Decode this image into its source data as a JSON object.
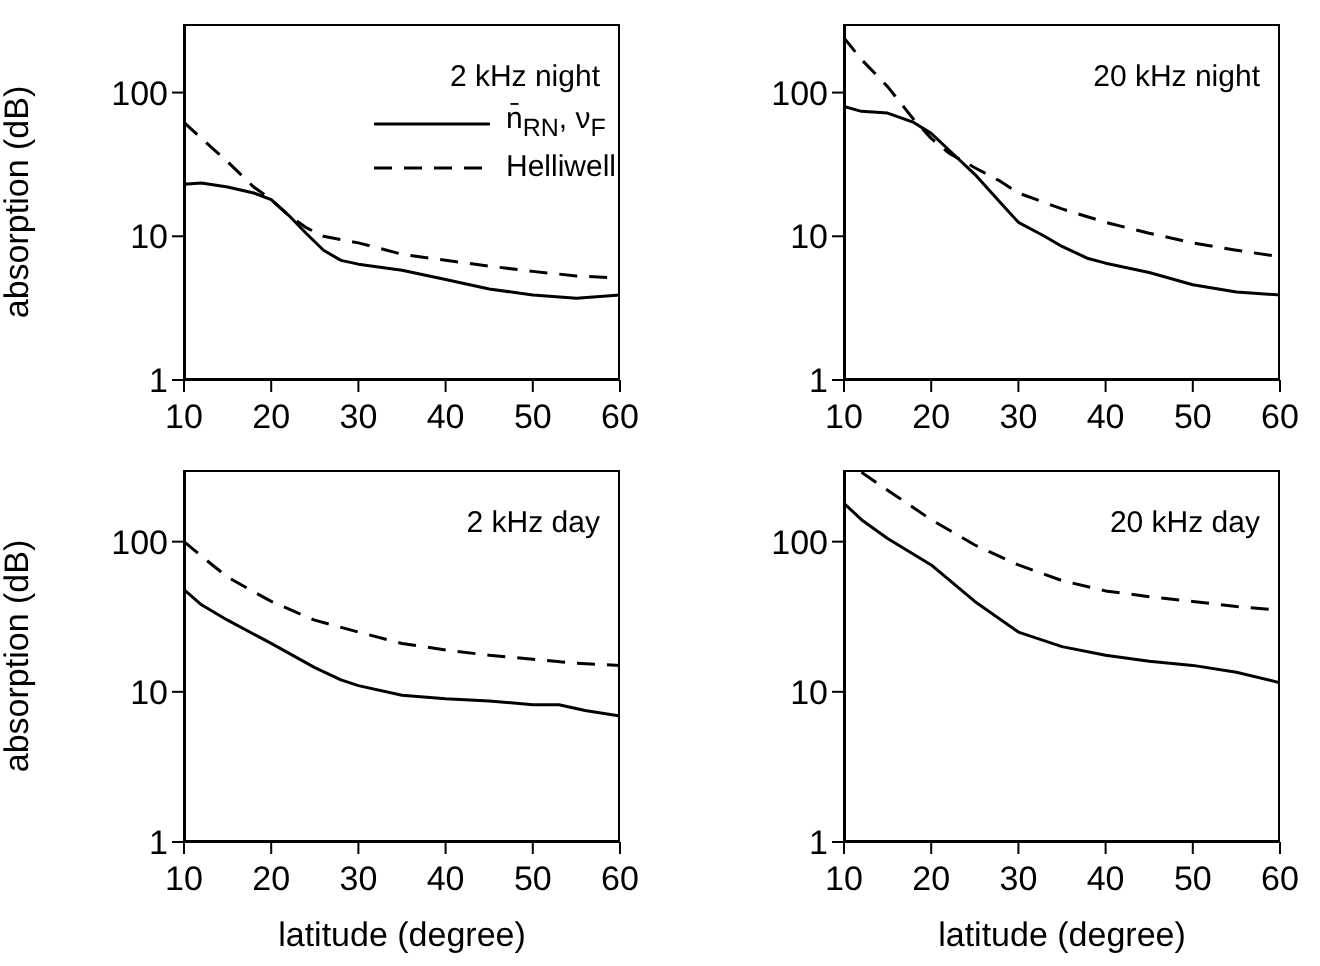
{
  "chart_data": [
    {
      "type": "line",
      "annotations": [
        "2 kHz night"
      ],
      "ylabel": "absorption (dB)",
      "log": true,
      "xlim": [
        10,
        60
      ],
      "xticks": [
        10,
        20,
        30,
        40,
        50,
        60
      ],
      "ylim": [
        1,
        300
      ],
      "yticks": [
        1,
        10,
        100
      ],
      "legend": "top right",
      "series": [
        {
          "name": "n̄$_{RN}$, ν$_{F}$",
          "color": "#000000",
          "line_style": "solid",
          "x": [
            10,
            12,
            15,
            18,
            20,
            22,
            24,
            26,
            28,
            30,
            35,
            40,
            45,
            50,
            55,
            60
          ],
          "values": [
            23,
            23.5,
            22,
            20,
            18,
            14,
            10.5,
            8,
            6.8,
            6.4,
            5.8,
            5,
            4.3,
            3.9,
            3.7,
            3.9
          ]
        },
        {
          "name": "Helliwell",
          "color": "#000000",
          "line_style": "dashed",
          "x": [
            10,
            12,
            15,
            18,
            20,
            22,
            24,
            26,
            30,
            35,
            40,
            45,
            50,
            55,
            60
          ],
          "values": [
            62,
            48,
            33,
            22,
            18,
            14,
            11.5,
            10,
            9,
            7.5,
            6.8,
            6.2,
            5.7,
            5.3,
            5.1
          ]
        }
      ]
    },
    {
      "type": "line",
      "annotations": [
        "20 kHz night"
      ],
      "log": true,
      "xlim": [
        10,
        60
      ],
      "xticks": [
        10,
        20,
        30,
        40,
        50,
        60
      ],
      "ylim": [
        1,
        300
      ],
      "yticks": [
        1,
        10,
        100
      ],
      "series": [
        {
          "color": "#000000",
          "line_style": "solid",
          "x": [
            10,
            12,
            15,
            18,
            20,
            22,
            25,
            28,
            30,
            33,
            35,
            38,
            40,
            45,
            50,
            55,
            60
          ],
          "values": [
            80,
            74,
            72,
            62,
            52,
            40,
            27,
            17,
            12.5,
            10,
            8.5,
            7,
            6.5,
            5.6,
            4.6,
            4.1,
            3.9
          ]
        },
        {
          "color": "#000000",
          "line_style": "dashed",
          "x": [
            10,
            12,
            15,
            18,
            20,
            22,
            25,
            28,
            30,
            35,
            40,
            45,
            50,
            55,
            60
          ],
          "values": [
            240,
            170,
            110,
            65,
            48,
            38,
            30,
            24,
            20,
            15.5,
            12.5,
            10.5,
            9,
            8,
            7.2
          ]
        }
      ]
    },
    {
      "type": "line",
      "annotations": [
        "2 kHz day"
      ],
      "ylabel": "absorption (dB)",
      "xlabel": "latitude (degree)",
      "log": true,
      "xlim": [
        10,
        60
      ],
      "xticks": [
        10,
        20,
        30,
        40,
        50,
        60
      ],
      "ylim": [
        1,
        300
      ],
      "yticks": [
        1,
        10,
        100
      ],
      "series": [
        {
          "color": "#000000",
          "line_style": "solid",
          "x": [
            10,
            12,
            15,
            20,
            25,
            28,
            30,
            35,
            40,
            45,
            50,
            53,
            56,
            60
          ],
          "values": [
            48,
            38,
            30,
            21,
            14.5,
            12,
            11,
            9.5,
            9,
            8.7,
            8.2,
            8.2,
            7.5,
            6.9
          ]
        },
        {
          "color": "#000000",
          "line_style": "dashed",
          "x": [
            10,
            12,
            15,
            20,
            25,
            30,
            35,
            40,
            45,
            50,
            55,
            60
          ],
          "values": [
            100,
            80,
            58,
            40,
            30,
            25,
            21,
            19,
            17.5,
            16.5,
            15.5,
            15
          ]
        }
      ]
    },
    {
      "type": "line",
      "annotations": [
        "20 kHz day"
      ],
      "xlabel": "latitude (degree)",
      "log": true,
      "xlim": [
        10,
        60
      ],
      "xticks": [
        10,
        20,
        30,
        40,
        50,
        60
      ],
      "ylim": [
        1,
        300
      ],
      "yticks": [
        1,
        10,
        100
      ],
      "series": [
        {
          "color": "#000000",
          "line_style": "solid",
          "x": [
            10,
            12,
            15,
            20,
            25,
            30,
            35,
            40,
            45,
            50,
            55,
            60
          ],
          "values": [
            180,
            140,
            105,
            70,
            40,
            25,
            20,
            17.5,
            16,
            15,
            13.5,
            11.5
          ]
        },
        {
          "color": "#000000",
          "line_style": "dashed",
          "x": [
            12,
            15,
            20,
            25,
            30,
            35,
            40,
            45,
            50,
            55,
            60
          ],
          "values": [
            290,
            220,
            140,
            95,
            70,
            55,
            47,
            43,
            40,
            37,
            35
          ]
        }
      ]
    }
  ]
}
